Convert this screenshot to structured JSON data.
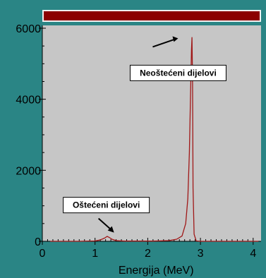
{
  "chart_data": {
    "type": "line",
    "title": "",
    "xlabel": "Energija (MeV)",
    "ylabel": "",
    "xlim": [
      0,
      4.15
    ],
    "ylim": [
      0,
      6000
    ],
    "xticks": [
      "0",
      "1",
      "2",
      "3",
      "4"
    ],
    "yticks": [
      "0",
      "2000",
      "4000",
      "6000"
    ],
    "grid": false,
    "series": [
      {
        "color": "#a01818",
        "x": [
          0.15,
          0.4,
          0.7,
          1.0,
          1.1,
          1.18,
          1.23,
          1.27,
          1.32,
          1.4,
          1.55,
          1.8,
          2.1,
          2.4,
          2.55,
          2.65,
          2.72,
          2.76,
          2.79,
          2.81,
          2.83,
          2.84,
          2.85,
          2.86,
          2.88,
          2.92,
          3.0,
          3.5,
          4.1
        ],
        "y": [
          0,
          0,
          0,
          10,
          40,
          90,
          140,
          110,
          60,
          20,
          5,
          5,
          5,
          20,
          60,
          150,
          500,
          1200,
          2500,
          4000,
          5400,
          5750,
          4500,
          1500,
          200,
          10,
          0,
          0,
          0
        ]
      }
    ],
    "annotations": [
      {
        "text": "Neoštećeni dijelovi",
        "x": 2.63,
        "y": 4800
      },
      {
        "text": "Oštećeni dijelovi",
        "x": 1.2,
        "y": 1000
      }
    ]
  }
}
